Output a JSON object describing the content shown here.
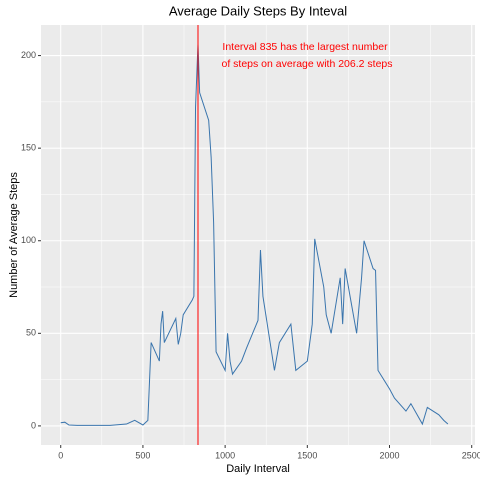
{
  "chart_data": {
    "type": "line",
    "title": "Average Daily Steps By Inteval",
    "x_label": "Daily Interval",
    "y_label": "Number of Average Steps",
    "annotation": [
      "Interval 835 has the largest number",
      "of steps on average with 206.2 steps"
    ],
    "vline": 835,
    "vline_color": "#ff0000",
    "grid": true,
    "xlim": [
      -120,
      2520
    ],
    "xticks": [
      0,
      500,
      1000,
      1500,
      2000,
      2500
    ],
    "ylim": [
      -10.31,
      216.51
    ],
    "yticks": [
      0,
      50,
      100,
      150,
      200
    ],
    "series": [
      {
        "name": "steps",
        "color": "#3a75ad",
        "x": [
          0,
          25,
          50,
          100,
          200,
          300,
          400,
          450,
          500,
          530,
          550,
          600,
          610,
          620,
          630,
          700,
          715,
          730,
          745,
          800,
          810,
          820,
          830,
          835,
          845,
          900,
          915,
          930,
          945,
          1000,
          1015,
          1030,
          1045,
          1100,
          1130,
          1200,
          1215,
          1230,
          1300,
          1330,
          1400,
          1430,
          1500,
          1530,
          1545,
          1600,
          1615,
          1645,
          1700,
          1715,
          1730,
          1800,
          1830,
          1845,
          1900,
          1915,
          1930,
          2000,
          2030,
          2100,
          2130,
          2200,
          2230,
          2300,
          2330,
          2355
        ],
        "values": [
          1.7,
          2,
          0.5,
          0.3,
          0.3,
          0.3,
          1,
          3,
          0.5,
          3,
          45,
          35,
          55,
          62,
          45,
          58,
          44,
          50,
          60,
          68,
          70,
          172,
          195,
          206.2,
          180,
          165,
          145,
          110,
          40,
          30,
          50,
          35,
          28,
          35,
          42,
          57,
          95,
          70,
          30,
          45,
          55,
          30,
          35,
          55,
          101,
          75,
          60,
          50,
          80,
          55,
          85,
          50,
          80,
          100,
          85,
          84,
          30,
          20,
          15,
          8,
          12,
          1,
          10,
          6,
          3,
          1
        ]
      }
    ]
  }
}
